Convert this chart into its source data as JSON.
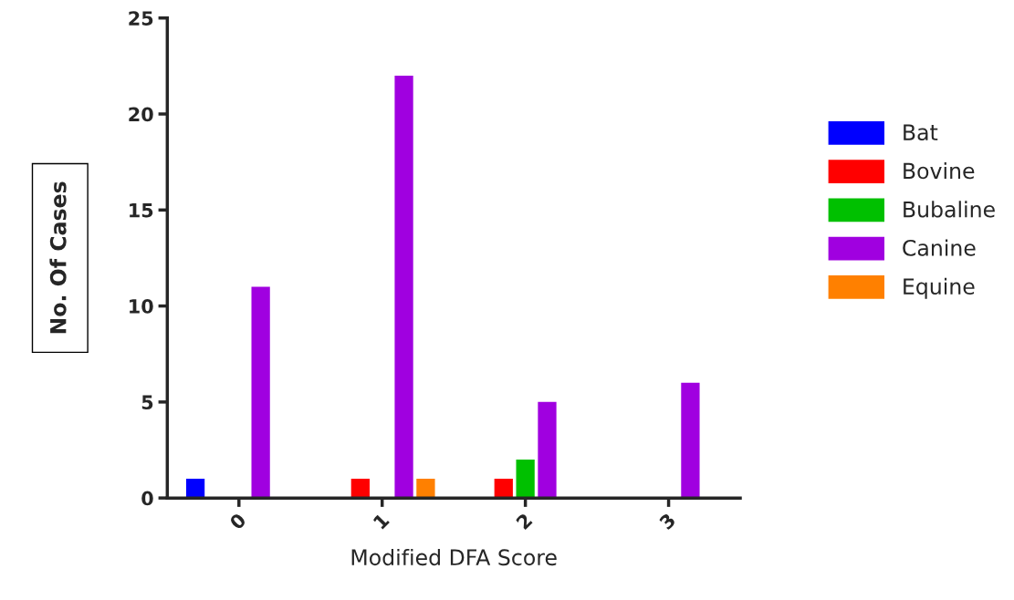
{
  "chart_data": {
    "type": "bar",
    "xlabel": "Modified DFA Score",
    "ylabel": "No. Of Cases",
    "categories": [
      "0",
      "1",
      "2",
      "3"
    ],
    "series": [
      {
        "name": "Bat",
        "color": "#0000ff",
        "values": [
          1,
          null,
          null,
          null
        ]
      },
      {
        "name": "Bovine",
        "color": "#ff0000",
        "values": [
          null,
          1,
          1,
          null
        ]
      },
      {
        "name": "Bubaline",
        "color": "#00c000",
        "values": [
          null,
          null,
          2,
          null
        ]
      },
      {
        "name": "Canine",
        "color": "#a000e0",
        "values": [
          11,
          22,
          5,
          6
        ]
      },
      {
        "name": "Equine",
        "color": "#ff8000",
        "values": [
          null,
          1,
          null,
          null
        ]
      }
    ],
    "ylim": [
      0,
      25
    ],
    "yticks": [
      0,
      5,
      10,
      15,
      20,
      25
    ],
    "grid": false,
    "legend": "right"
  }
}
